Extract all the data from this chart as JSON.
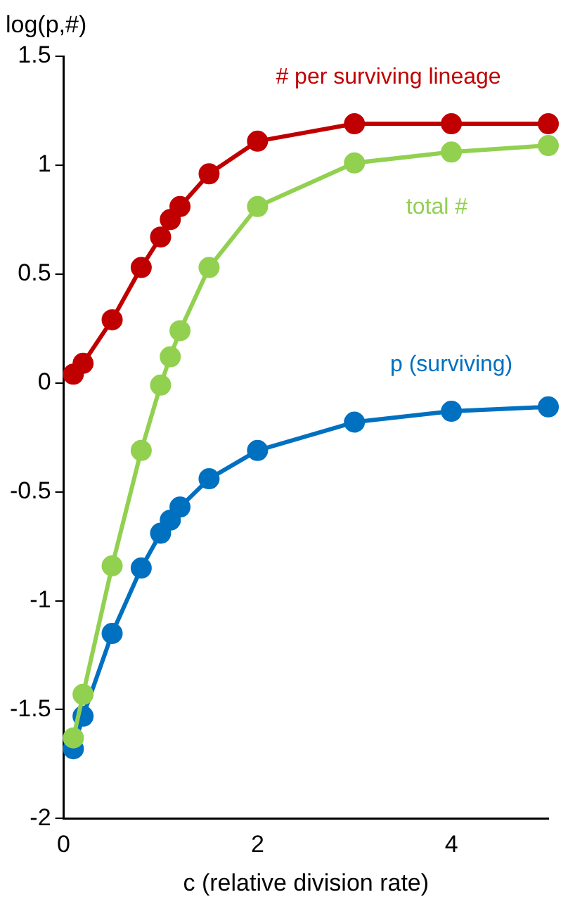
{
  "chart_data": {
    "type": "line",
    "ylabel": "log(p,#)",
    "xlabel": "c (relative division rate)",
    "x": [
      0.1,
      0.2,
      0.5,
      0.8,
      1,
      1.1,
      1.2,
      1.5,
      2,
      3,
      4,
      5
    ],
    "series": [
      {
        "name": "# per surviving lineage",
        "color": "#c00000",
        "values": [
          0.04,
          0.09,
          0.29,
          0.53,
          0.67,
          0.75,
          0.81,
          0.96,
          1.11,
          1.19,
          1.19,
          1.19
        ]
      },
      {
        "name": "total #",
        "color": "#92d050",
        "values": [
          -1.63,
          -1.43,
          -0.84,
          -0.31,
          -0.01,
          0.12,
          0.24,
          0.53,
          0.81,
          1.01,
          1.06,
          1.09
        ]
      },
      {
        "name": "p (surviving)",
        "color": "#0070c0",
        "values": [
          -1.68,
          -1.53,
          -1.15,
          -0.85,
          -0.69,
          -0.63,
          -0.57,
          -0.44,
          -0.31,
          -0.18,
          -0.13,
          -0.11
        ]
      }
    ],
    "xlim": [
      0,
      5
    ],
    "xticks": [
      0,
      2,
      4
    ],
    "ylim": [
      -2,
      1.5
    ],
    "yticks": [
      -2,
      -1.5,
      -1,
      -0.5,
      0,
      0.5,
      1,
      1.5
    ],
    "grid": false,
    "legend": false,
    "marker": "circle",
    "line_style": "solid"
  }
}
